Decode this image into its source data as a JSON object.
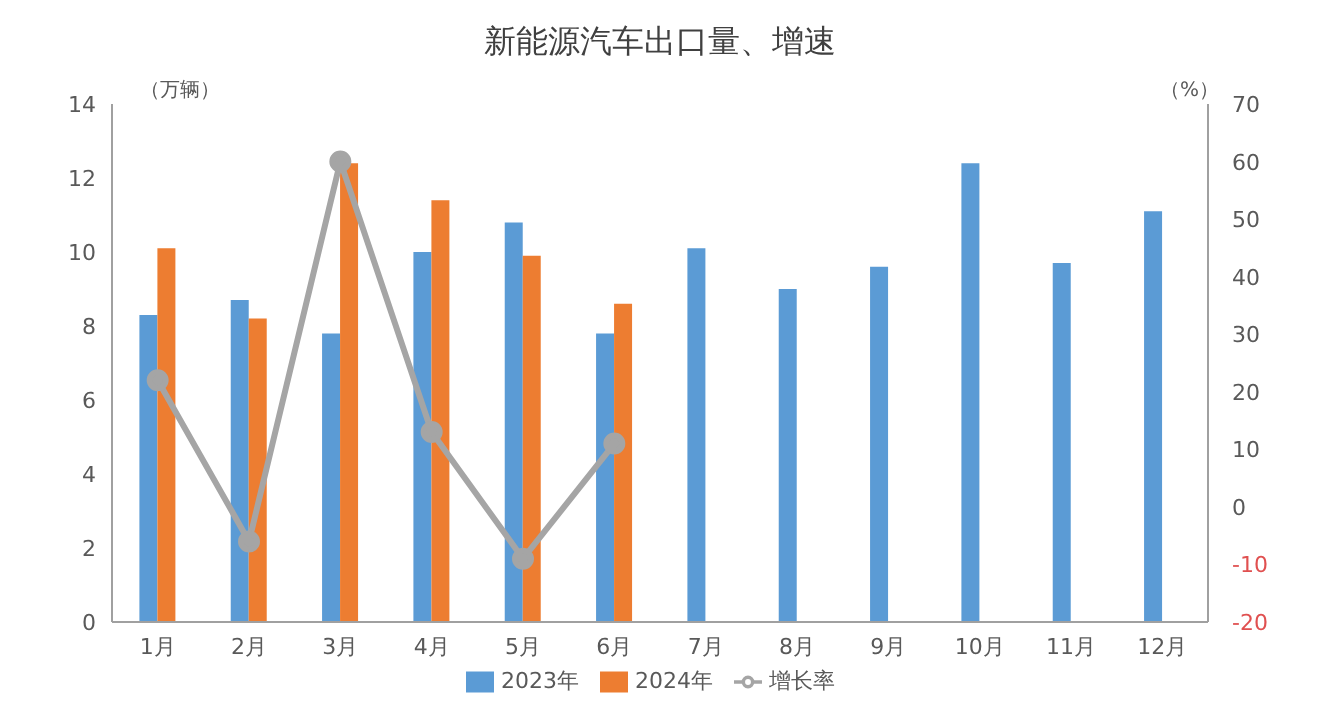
{
  "chart_data": {
    "type": "bar",
    "title": "新能源汽车出口量、增速",
    "ylabel": "（万辆）",
    "y2label": "（%）",
    "categories": [
      "1月",
      "2月",
      "3月",
      "4月",
      "5月",
      "6月",
      "7月",
      "8月",
      "9月",
      "10月",
      "11月",
      "12月"
    ],
    "series": [
      {
        "name": "2023年",
        "color": "#5b9bd5",
        "values": [
          8.3,
          8.7,
          7.8,
          10.0,
          10.8,
          7.8,
          10.1,
          9.0,
          9.6,
          12.4,
          9.7,
          11.1
        ]
      },
      {
        "name": "2024年",
        "color": "#ed7d31",
        "values": [
          10.1,
          8.2,
          12.4,
          11.4,
          9.9,
          8.6,
          null,
          null,
          null,
          null,
          null,
          null
        ]
      },
      {
        "name": "增长率",
        "type": "line",
        "axis": "y2",
        "color": "#a5a5a5",
        "marker": "circle",
        "values": [
          22,
          -6,
          60,
          13,
          -9,
          11,
          null,
          null,
          null,
          null,
          null,
          null
        ]
      }
    ],
    "ylim": [
      0,
      14
    ],
    "yticks": [
      0,
      2,
      4,
      6,
      8,
      10,
      12,
      14
    ],
    "y2lim": [
      -20,
      70
    ],
    "y2ticks": [
      -20,
      -10,
      0,
      10,
      20,
      30,
      40,
      50,
      60,
      70
    ],
    "legend": "bottom"
  }
}
